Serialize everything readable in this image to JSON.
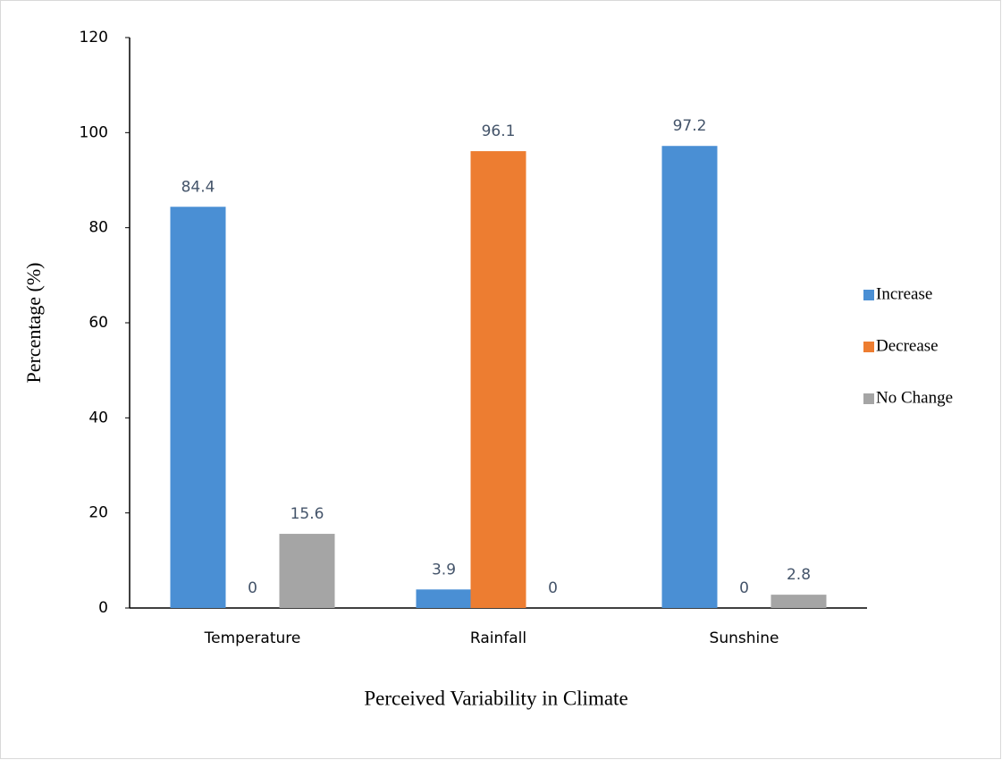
{
  "chart_data": {
    "type": "bar",
    "x_label": "Perceived Variability in Climate",
    "y_label": "Percentage (%)",
    "categories": [
      "Temperature",
      "Rainfall",
      "Sunshine"
    ],
    "series": [
      {
        "name": "Increase",
        "color": "#4a8fd4",
        "values": [
          84.4,
          3.9,
          97.2
        ]
      },
      {
        "name": "Decrease",
        "color": "#ed7d31",
        "values": [
          0,
          96.1,
          0
        ]
      },
      {
        "name": "No Change",
        "color": "#a5a5a5",
        "values": [
          15.6,
          0,
          2.8
        ]
      }
    ],
    "ylim": [
      0,
      120
    ],
    "yticks": [
      0,
      20,
      40,
      60,
      80,
      100,
      120
    ],
    "legend": "right"
  }
}
